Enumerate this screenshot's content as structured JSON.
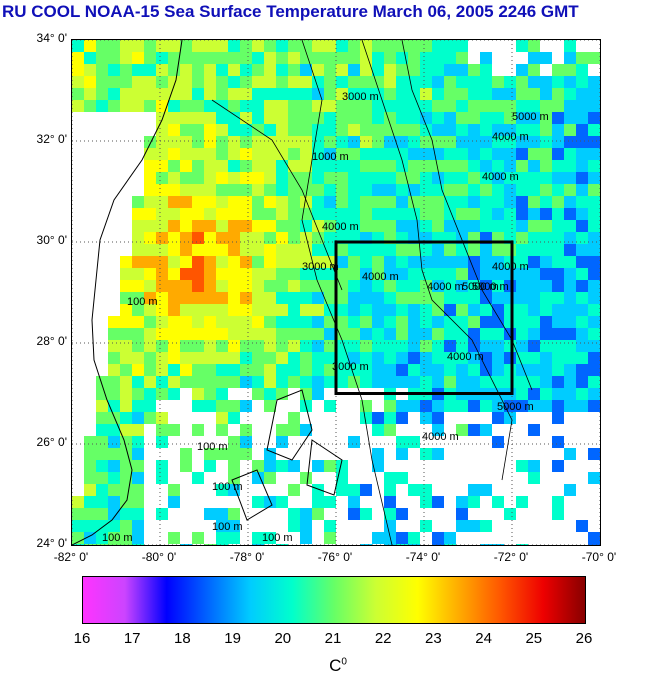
{
  "title": "RU COOL  NOAA-15 Sea Surface Temperature March 06, 2005 2246 GMT",
  "lat_labels": [
    "34° 0'",
    "32° 0'",
    "30° 0'",
    "28° 0'",
    "26° 0'",
    "24° 0'"
  ],
  "lat_values": [
    34,
    32,
    30,
    28,
    26,
    24
  ],
  "lon_labels": [
    "-82° 0'",
    "-80° 0'",
    "-78° 0'",
    "-76° 0'",
    "-74° 0'",
    "-72° 0'",
    "-70° 0'"
  ],
  "lon_values": [
    -82,
    -80,
    -78,
    -76,
    -74,
    -72,
    -70
  ],
  "extent": {
    "lon_min": -82,
    "lon_max": -70,
    "lat_min": 24,
    "lat_max": 34
  },
  "study_box": {
    "lon_min": -76,
    "lon_max": -72,
    "lat_min": 27,
    "lat_max": 30
  },
  "colorbar": {
    "min": 16,
    "max": 26,
    "labels": [
      "16",
      "17",
      "18",
      "19",
      "20",
      "21",
      "22",
      "23",
      "24",
      "25",
      "26"
    ],
    "unit_base": "C",
    "unit_sup": "0",
    "colors": [
      "#ff33ff",
      "#cc44ff",
      "#0000ff",
      "#0066ff",
      "#00ccff",
      "#00ffcc",
      "#66ff66",
      "#ccff33",
      "#ffff00",
      "#ffaa00",
      "#ff5500",
      "#ee0000",
      "#880000"
    ]
  },
  "contour_labels": [
    "100 m",
    "100 m",
    "100 m",
    "100 m",
    "100 m",
    "100 m",
    "1000 m",
    "3000 m",
    "3000 m",
    "4000 m",
    "4000 m",
    "4000 m",
    "4000 m",
    "4000 m",
    "4000 m",
    "4000 m",
    "5000 m",
    "5000 m",
    "5000 m",
    "4000 m",
    "5000 m",
    "3000 m"
  ]
}
